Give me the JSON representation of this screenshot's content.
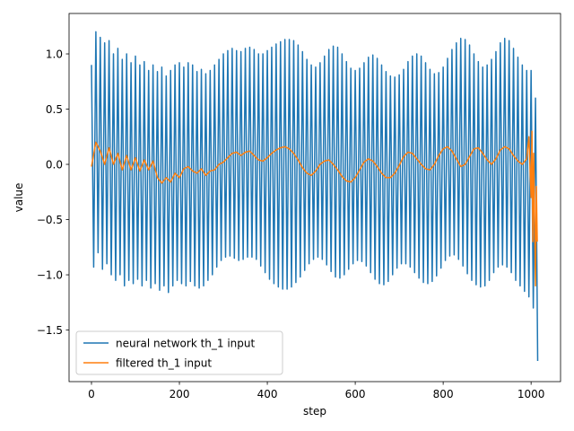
{
  "chart_data": {
    "type": "line",
    "xlabel": "step",
    "ylabel": "value",
    "xlim": [
      -51,
      1067
    ],
    "ylim": [
      -1.967,
      1.366
    ],
    "xticks": [
      0,
      200,
      400,
      600,
      800,
      1000
    ],
    "yticks": [
      {
        "value": -1.5,
        "label": "−1.5"
      },
      {
        "value": -1.0,
        "label": "−1.0"
      },
      {
        "value": -0.5,
        "label": "−0.5"
      },
      {
        "value": 0.0,
        "label": "0.0"
      },
      {
        "value": 0.5,
        "label": "0.5"
      },
      {
        "value": 1.0,
        "label": "1.0"
      }
    ],
    "legend": "lower left",
    "series": [
      {
        "name": "neural network th_1 input",
        "color": "#1f77b4",
        "x": [
          0,
          5,
          10,
          15,
          20,
          25,
          30,
          35,
          40,
          45,
          50,
          55,
          60,
          65,
          70,
          75,
          80,
          85,
          90,
          95,
          100,
          105,
          110,
          115,
          120,
          125,
          130,
          135,
          140,
          145,
          150,
          155,
          160,
          165,
          170,
          175,
          180,
          185,
          190,
          195,
          200,
          205,
          210,
          215,
          220,
          225,
          230,
          235,
          240,
          245,
          250,
          255,
          260,
          265,
          270,
          275,
          280,
          285,
          290,
          295,
          300,
          305,
          310,
          315,
          320,
          325,
          330,
          335,
          340,
          345,
          350,
          355,
          360,
          365,
          370,
          375,
          380,
          385,
          390,
          395,
          400,
          405,
          410,
          415,
          420,
          425,
          430,
          435,
          440,
          445,
          450,
          455,
          460,
          465,
          470,
          475,
          480,
          485,
          490,
          495,
          500,
          505,
          510,
          515,
          520,
          525,
          530,
          535,
          540,
          545,
          550,
          555,
          560,
          565,
          570,
          575,
          580,
          585,
          590,
          595,
          600,
          605,
          610,
          615,
          620,
          625,
          630,
          635,
          640,
          645,
          650,
          655,
          660,
          665,
          670,
          675,
          680,
          685,
          690,
          695,
          700,
          705,
          710,
          715,
          720,
          725,
          730,
          735,
          740,
          745,
          750,
          755,
          760,
          765,
          770,
          775,
          780,
          785,
          790,
          795,
          800,
          805,
          810,
          815,
          820,
          825,
          830,
          835,
          840,
          845,
          850,
          855,
          860,
          865,
          870,
          875,
          880,
          885,
          890,
          895,
          900,
          905,
          910,
          915,
          920,
          925,
          930,
          935,
          940,
          945,
          950,
          955,
          960,
          965,
          970,
          975,
          980,
          985,
          990,
          995,
          1000,
          1005,
          1010,
          1015
        ],
        "values": [
          0.9,
          -0.93,
          1.2,
          -0.8,
          1.15,
          -0.95,
          1.1,
          -0.9,
          1.12,
          -1.0,
          1.0,
          -1.05,
          1.05,
          -1.0,
          0.95,
          -1.1,
          1.0,
          -1.05,
          0.92,
          -1.08,
          0.98,
          -1.04,
          0.9,
          -1.1,
          0.93,
          -1.05,
          0.85,
          -1.12,
          0.9,
          -1.08,
          0.84,
          -1.14,
          0.88,
          -1.1,
          0.8,
          -1.16,
          0.85,
          -1.1,
          0.9,
          -1.05,
          0.92,
          -1.08,
          0.88,
          -1.1,
          0.92,
          -1.06,
          0.9,
          -1.1,
          0.84,
          -1.12,
          0.86,
          -1.1,
          0.82,
          -1.05,
          0.85,
          -1.0,
          0.9,
          -0.93,
          0.95,
          -0.87,
          1.0,
          -0.84,
          1.03,
          -0.83,
          1.05,
          -0.85,
          1.03,
          -0.87,
          1.02,
          -0.86,
          1.05,
          -0.84,
          1.06,
          -0.84,
          1.04,
          -0.86,
          1.0,
          -0.92,
          1.0,
          -0.98,
          1.03,
          -1.04,
          1.06,
          -1.08,
          1.09,
          -1.11,
          1.11,
          -1.13,
          1.13,
          -1.13,
          1.13,
          -1.11,
          1.12,
          -1.07,
          1.08,
          -1.02,
          1.02,
          -0.96,
          0.95,
          -0.9,
          0.9,
          -0.86,
          0.88,
          -0.84,
          0.92,
          -0.86,
          0.98,
          -0.91,
          1.04,
          -0.97,
          1.07,
          -1.02,
          1.06,
          -1.03,
          1.0,
          -1.0,
          0.93,
          -0.95,
          0.87,
          -0.9,
          0.85,
          -0.87,
          0.87,
          -0.88,
          0.92,
          -0.92,
          0.97,
          -0.98,
          0.99,
          -1.04,
          0.96,
          -1.08,
          0.9,
          -1.09,
          0.84,
          -1.06,
          0.8,
          -1.0,
          0.79,
          -0.94,
          0.81,
          -0.9,
          0.86,
          -0.9,
          0.93,
          -0.93,
          0.98,
          -0.98,
          1.0,
          -1.03,
          0.98,
          -1.07,
          0.92,
          -1.08,
          0.86,
          -1.06,
          0.82,
          -1.01,
          0.83,
          -0.94,
          0.88,
          -0.87,
          0.96,
          -0.83,
          1.04,
          -0.82,
          1.1,
          -0.86,
          1.14,
          -0.92,
          1.13,
          -0.99,
          1.08,
          -1.05,
          1.0,
          -1.09,
          0.93,
          -1.11,
          0.88,
          -1.1,
          0.9,
          -1.05,
          0.95,
          -0.98,
          1.02,
          -0.93,
          1.1,
          -0.91,
          1.14,
          -0.93,
          1.12,
          -0.98,
          1.05,
          -1.05,
          0.97,
          -1.1,
          0.9,
          -1.15,
          0.85,
          -1.2,
          0.85,
          -1.3,
          0.6,
          -1.78
        ]
      },
      {
        "name": "filtered th_1 input",
        "color": "#ff7f0e",
        "x": [
          0,
          10,
          20,
          30,
          40,
          50,
          60,
          70,
          80,
          90,
          100,
          110,
          120,
          130,
          140,
          150,
          160,
          170,
          180,
          190,
          200,
          210,
          220,
          230,
          240,
          250,
          260,
          270,
          280,
          290,
          300,
          310,
          320,
          330,
          340,
          350,
          360,
          370,
          380,
          390,
          400,
          410,
          420,
          430,
          440,
          450,
          460,
          470,
          480,
          490,
          500,
          510,
          520,
          530,
          540,
          550,
          560,
          570,
          580,
          590,
          600,
          610,
          620,
          630,
          640,
          650,
          660,
          670,
          680,
          690,
          700,
          710,
          720,
          730,
          740,
          750,
          760,
          770,
          780,
          790,
          800,
          810,
          820,
          830,
          840,
          850,
          860,
          870,
          880,
          890,
          900,
          910,
          920,
          930,
          940,
          950,
          960,
          970,
          980,
          990,
          995,
          1000,
          1002,
          1004,
          1006,
          1008,
          1010,
          1012,
          1014
        ],
        "values": [
          -0.02,
          0.2,
          0.12,
          0.0,
          0.15,
          0.0,
          0.1,
          -0.05,
          0.08,
          -0.05,
          0.06,
          -0.06,
          0.04,
          -0.05,
          0.03,
          -0.12,
          -0.17,
          -0.12,
          -0.16,
          -0.08,
          -0.12,
          -0.04,
          -0.02,
          -0.06,
          -0.08,
          -0.04,
          -0.1,
          -0.06,
          -0.05,
          0.0,
          0.02,
          0.06,
          0.1,
          0.11,
          0.08,
          0.11,
          0.12,
          0.08,
          0.04,
          0.03,
          0.06,
          0.1,
          0.13,
          0.15,
          0.16,
          0.14,
          0.1,
          0.04,
          -0.03,
          -0.08,
          -0.1,
          -0.06,
          0.0,
          0.03,
          0.04,
          0.0,
          -0.05,
          -0.11,
          -0.15,
          -0.16,
          -0.12,
          -0.05,
          0.02,
          0.05,
          0.03,
          -0.02,
          -0.08,
          -0.12,
          -0.12,
          -0.08,
          -0.01,
          0.07,
          0.11,
          0.1,
          0.05,
          0.0,
          -0.04,
          -0.05,
          0.0,
          0.08,
          0.14,
          0.16,
          0.12,
          0.05,
          -0.02,
          0.0,
          0.07,
          0.14,
          0.15,
          0.1,
          0.04,
          0.0,
          0.05,
          0.13,
          0.16,
          0.14,
          0.08,
          0.03,
          0.0,
          0.05,
          0.25,
          -0.3,
          0.3,
          -0.7,
          0.1,
          -0.5,
          -1.1,
          -0.2,
          -0.7
        ]
      }
    ]
  }
}
